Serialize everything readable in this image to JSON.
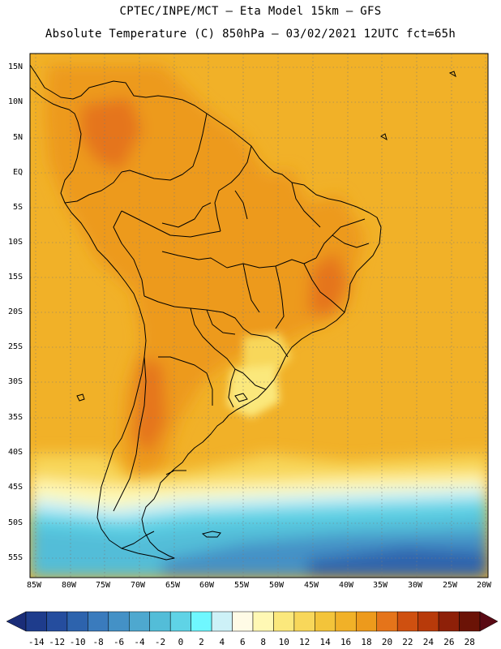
{
  "header": {
    "line1": "CPTEC/INPE/MCT –  Eta Model 15km – GFS",
    "line2": "Absolute Temperature (C) 850hPa – 03/02/2021 12UTC fct=65h"
  },
  "axes": {
    "lat_labels": [
      "15N",
      "10N",
      "5N",
      "EQ",
      "5S",
      "10S",
      "15S",
      "20S",
      "25S",
      "30S",
      "35S",
      "40S",
      "45S",
      "50S",
      "55S"
    ],
    "lon_labels": [
      "85W",
      "80W",
      "75W",
      "70W",
      "65W",
      "60W",
      "55W",
      "50W",
      "45W",
      "40W",
      "35W",
      "30W",
      "25W",
      "20W"
    ]
  },
  "colorbar": {
    "labels": [
      "-14",
      "-12",
      "-10",
      "-8",
      "-6",
      "-4",
      "-2",
      "0",
      "2",
      "4",
      "6",
      "8",
      "10",
      "12",
      "14",
      "16",
      "18",
      "20",
      "22",
      "24",
      "26",
      "28"
    ],
    "colors": [
      "#1e3c8c",
      "#254d9e",
      "#2d63ad",
      "#3a7bbd",
      "#4491c6",
      "#4ea8cf",
      "#53bdd8",
      "#5fd3e6",
      "#6ff7ff",
      "#cdf1f7",
      "#fffbe6",
      "#fff8b4",
      "#fbe87c",
      "#f8d75a",
      "#f3c43a",
      "#f1b128",
      "#ed9a1c",
      "#e5741a",
      "#cf5010",
      "#b83a0a",
      "#8e2008",
      "#6b1306"
    ],
    "under_color": "#1a2d78",
    "over_color": "#5a0a14"
  }
}
